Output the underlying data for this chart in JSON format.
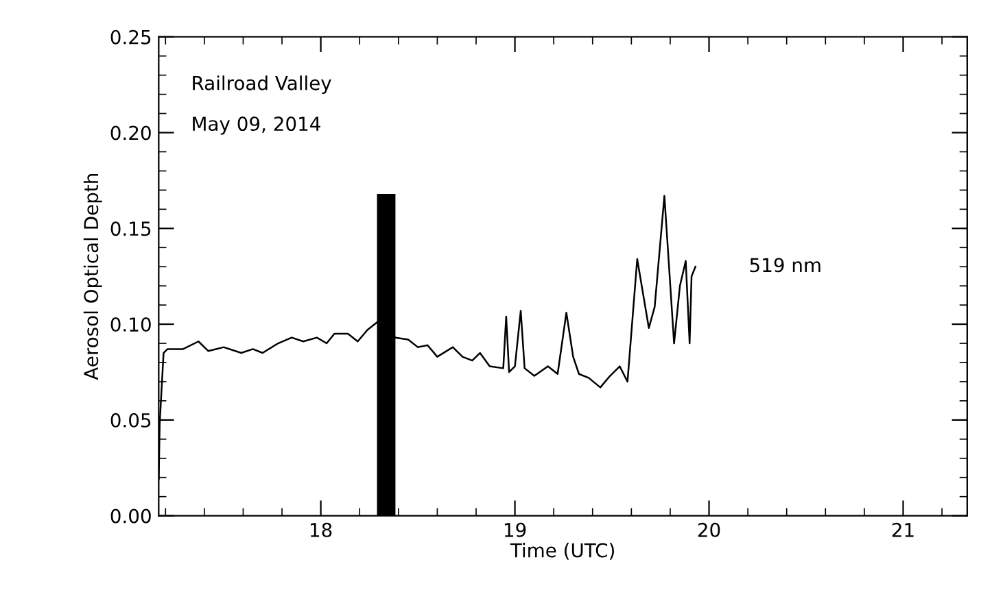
{
  "chart_data": {
    "type": "line",
    "xlabel": "Time (UTC)",
    "ylabel": "Aerosol Optical Depth",
    "annotations": [
      "Railroad Valley",
      "May 09, 2014"
    ],
    "xlim": [
      17.165,
      21.33
    ],
    "xticks": [
      18,
      19,
      20,
      21
    ],
    "ylim": [
      0,
      0.25
    ],
    "yticks": [
      {
        "value": 0,
        "label": "0.00"
      },
      {
        "value": 0.05,
        "label": "0.05"
      },
      {
        "value": 0.1,
        "label": "0.10"
      },
      {
        "value": 0.15,
        "label": "0.15"
      },
      {
        "value": 0.2,
        "label": "0.20"
      },
      {
        "value": 0.25,
        "label": "0.25"
      }
    ],
    "grid": false,
    "legend": false,
    "marker": "none",
    "line_style": "solid",
    "series": [
      {
        "name": "519 nm",
        "color": "#000000",
        "x": [
          17.165,
          17.17,
          17.19,
          17.21,
          17.29,
          17.37,
          17.42,
          17.5,
          17.59,
          17.65,
          17.7,
          17.78,
          17.85,
          17.91,
          17.98,
          18.03,
          18.07,
          18.14,
          18.19,
          18.24,
          18.29,
          18.385,
          18.45,
          18.5,
          18.55,
          18.6,
          18.68,
          18.73,
          18.78,
          18.82,
          18.87,
          18.94,
          18.955,
          18.97,
          19.0,
          19.03,
          19.05,
          19.1,
          19.17,
          19.22,
          19.265,
          19.3,
          19.33,
          19.38,
          19.44,
          19.49,
          19.54,
          19.58,
          19.63,
          19.69,
          19.72,
          19.77,
          19.82,
          19.85,
          19.88,
          19.9,
          19.91,
          19.93
        ],
        "values": [
          0.019,
          0.048,
          0.085,
          0.087,
          0.087,
          0.091,
          0.086,
          0.088,
          0.085,
          0.087,
          0.085,
          0.09,
          0.093,
          0.091,
          0.093,
          0.09,
          0.095,
          0.095,
          0.091,
          0.097,
          0.101,
          0.093,
          0.092,
          0.088,
          0.089,
          0.083,
          0.088,
          0.083,
          0.081,
          0.085,
          0.078,
          0.077,
          0.104,
          0.075,
          0.078,
          0.107,
          0.077,
          0.073,
          0.078,
          0.074,
          0.106,
          0.083,
          0.074,
          0.072,
          0.067,
          0.073,
          0.078,
          0.07,
          0.134,
          0.098,
          0.109,
          0.167,
          0.09,
          0.12,
          0.133,
          0.09,
          0.125,
          0.13
        ]
      },
      {
        "type": "bar",
        "color": "#000000",
        "x": [
          18.337
        ],
        "values": [
          0.168
        ]
      }
    ]
  }
}
